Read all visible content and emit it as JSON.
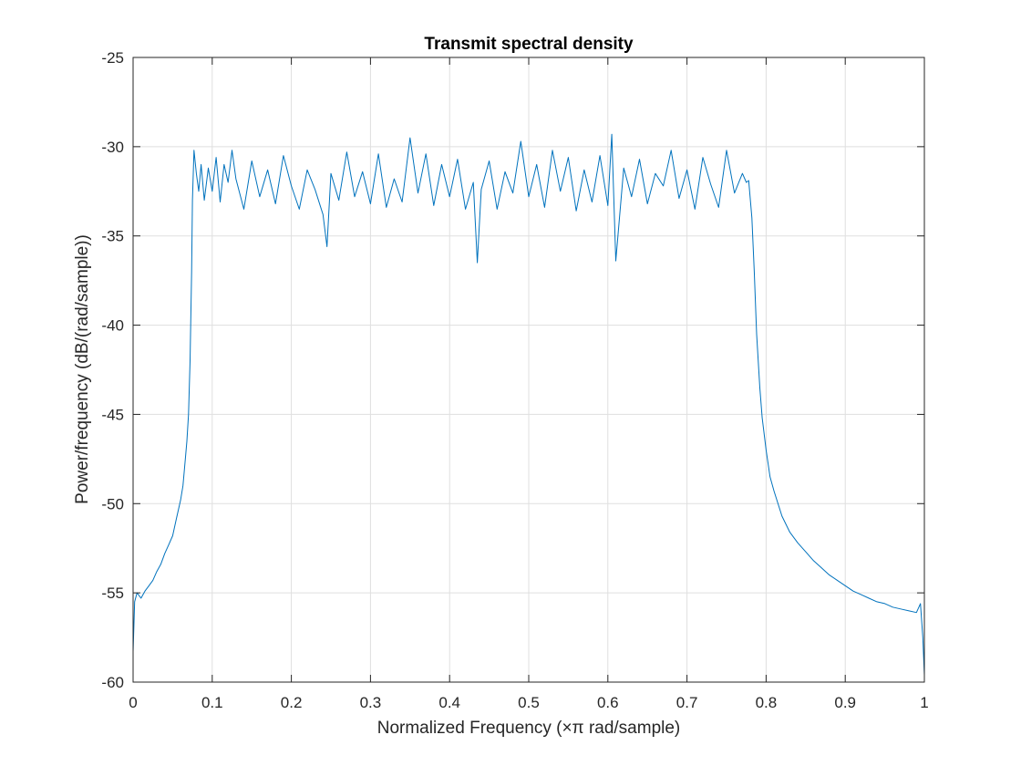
{
  "chart_data": {
    "type": "line",
    "title": "Transmit spectral density",
    "xlabel": "Normalized Frequency  (×π rad/sample)",
    "ylabel": "Power/frequency (dB/(rad/sample))",
    "xlim": [
      0,
      1
    ],
    "ylim": [
      -60,
      -25
    ],
    "xticks": [
      0,
      0.1,
      0.2,
      0.3,
      0.4,
      0.5,
      0.6,
      0.7,
      0.8,
      0.9,
      1
    ],
    "xtick_labels": [
      "0",
      "0.1",
      "0.2",
      "0.3",
      "0.4",
      "0.5",
      "0.6",
      "0.7",
      "0.8",
      "0.9",
      "1"
    ],
    "yticks": [
      -60,
      -55,
      -50,
      -45,
      -40,
      -35,
      -30,
      -25
    ],
    "ytick_labels": [
      "-60",
      "-55",
      "-50",
      "-45",
      "-40",
      "-35",
      "-30",
      "-25"
    ],
    "grid": true,
    "line_color": "#0072bd",
    "series": [
      {
        "x": [
          0,
          0.002,
          0.005,
          0.01,
          0.015,
          0.02,
          0.025,
          0.03,
          0.035,
          0.04,
          0.045,
          0.05,
          0.055,
          0.06,
          0.063,
          0.066,
          0.068,
          0.07,
          0.072,
          0.074,
          0.075,
          0.077,
          0.08,
          0.083,
          0.086,
          0.09,
          0.095,
          0.1,
          0.105,
          0.11,
          0.115,
          0.12,
          0.125,
          0.13,
          0.14,
          0.15,
          0.16,
          0.17,
          0.18,
          0.19,
          0.2,
          0.21,
          0.22,
          0.23,
          0.24,
          0.245,
          0.25,
          0.26,
          0.27,
          0.28,
          0.29,
          0.3,
          0.31,
          0.32,
          0.33,
          0.34,
          0.35,
          0.36,
          0.37,
          0.38,
          0.39,
          0.4,
          0.41,
          0.42,
          0.43,
          0.435,
          0.44,
          0.45,
          0.46,
          0.47,
          0.48,
          0.49,
          0.5,
          0.51,
          0.52,
          0.53,
          0.54,
          0.55,
          0.56,
          0.57,
          0.58,
          0.59,
          0.6,
          0.605,
          0.61,
          0.62,
          0.63,
          0.64,
          0.65,
          0.66,
          0.67,
          0.68,
          0.69,
          0.7,
          0.71,
          0.72,
          0.73,
          0.74,
          0.75,
          0.76,
          0.77,
          0.775,
          0.778,
          0.782,
          0.785,
          0.788,
          0.792,
          0.795,
          0.8,
          0.805,
          0.81,
          0.82,
          0.83,
          0.84,
          0.85,
          0.86,
          0.87,
          0.88,
          0.89,
          0.9,
          0.91,
          0.92,
          0.93,
          0.94,
          0.95,
          0.96,
          0.97,
          0.98,
          0.99,
          0.995,
          0.998,
          1
        ],
        "y": [
          -58.3,
          -55.5,
          -55,
          -55.3,
          -54.9,
          -54.6,
          -54.3,
          -53.8,
          -53.4,
          -52.8,
          -52.3,
          -51.8,
          -50.8,
          -49.8,
          -49,
          -47.5,
          -46.5,
          -45,
          -42,
          -37,
          -33,
          -30.2,
          -31.5,
          -32.5,
          -31,
          -33,
          -31.2,
          -32.5,
          -30.6,
          -33.1,
          -31,
          -32,
          -30.2,
          -31.8,
          -33.5,
          -30.8,
          -32.8,
          -31.3,
          -33.2,
          -30.5,
          -32.2,
          -33.5,
          -31.3,
          -32.4,
          -33.8,
          -35.6,
          -31.5,
          -33,
          -30.3,
          -32.8,
          -31.4,
          -33.2,
          -30.4,
          -33.4,
          -31.8,
          -33.1,
          -29.5,
          -32.6,
          -30.4,
          -33.3,
          -31,
          -32.8,
          -30.7,
          -33.5,
          -32,
          -36.5,
          -32.4,
          -30.8,
          -33.5,
          -31.4,
          -32.6,
          -29.7,
          -32.8,
          -31,
          -33.4,
          -30.2,
          -32.5,
          -30.6,
          -33.6,
          -31.3,
          -33.1,
          -30.5,
          -33.3,
          -29.3,
          -36.4,
          -31.2,
          -32.8,
          -30.7,
          -33.2,
          -31.5,
          -32.2,
          -30.2,
          -32.9,
          -31.3,
          -33.5,
          -30.6,
          -32.1,
          -33.4,
          -30.2,
          -32.6,
          -31.5,
          -32,
          -31.9,
          -34,
          -37,
          -40.5,
          -43.5,
          -45.2,
          -47,
          -48.5,
          -49.3,
          -50.7,
          -51.6,
          -52.2,
          -52.7,
          -53.2,
          -53.6,
          -54,
          -54.3,
          -54.6,
          -54.9,
          -55.1,
          -55.3,
          -55.5,
          -55.6,
          -55.8,
          -55.9,
          -56,
          -56.1,
          -55.6,
          -57.5,
          -59.6
        ]
      }
    ]
  }
}
